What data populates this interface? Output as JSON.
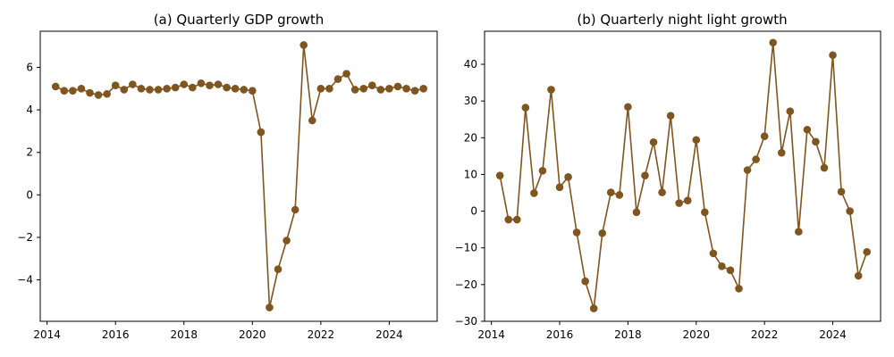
{
  "chart_data": [
    {
      "type": "line",
      "title": "(a) Quarterly GDP growth",
      "xlabel": "",
      "ylabel": "",
      "xlim": [
        2013.8,
        2025.4
      ],
      "ylim": [
        -5.95,
        7.7
      ],
      "xticks": [
        2014,
        2016,
        2018,
        2020,
        2022,
        2024
      ],
      "yticks": [
        -4,
        -2,
        0,
        2,
        4,
        6
      ],
      "grid": false,
      "colors": {
        "series": "#7f5520"
      },
      "series": [
        {
          "x": [
            2014.25,
            2014.5,
            2014.75,
            2015.0,
            2015.25,
            2015.5,
            2015.75,
            2016.0,
            2016.25,
            2016.5,
            2016.75,
            2017.0,
            2017.25,
            2017.5,
            2017.75,
            2018.0,
            2018.25,
            2018.5,
            2018.75,
            2019.0,
            2019.25,
            2019.5,
            2019.75,
            2020.0,
            2020.25,
            2020.5,
            2020.75,
            2021.0,
            2021.25,
            2021.5,
            2021.75,
            2022.0,
            2022.25,
            2022.5,
            2022.75,
            2023.0,
            2023.25,
            2023.5,
            2023.75,
            2024.0,
            2024.25,
            2024.5,
            2024.75,
            2025.0
          ],
          "y": [
            5.1,
            4.9,
            4.9,
            5.0,
            4.8,
            4.7,
            4.75,
            5.15,
            4.95,
            5.2,
            5.0,
            4.95,
            4.95,
            5.0,
            5.05,
            5.2,
            5.05,
            5.25,
            5.15,
            5.2,
            5.05,
            5.0,
            4.95,
            4.9,
            2.95,
            -5.3,
            -3.5,
            -2.15,
            -0.7,
            7.05,
            3.5,
            5.0,
            5.0,
            5.45,
            5.7,
            4.95,
            5.0,
            5.15,
            4.95,
            5.0,
            5.1,
            5.0,
            4.9,
            5.0
          ]
        }
      ]
    },
    {
      "type": "line",
      "title": "(b) Quarterly night light growth",
      "xlabel": "",
      "ylabel": "",
      "xlim": [
        2013.8,
        2025.4
      ],
      "ylim": [
        -30,
        49
      ],
      "xticks": [
        2014,
        2016,
        2018,
        2020,
        2022,
        2024
      ],
      "yticks": [
        -30,
        -20,
        -10,
        0,
        10,
        20,
        30,
        40
      ],
      "grid": false,
      "colors": {
        "series": "#7f5520"
      },
      "series": [
        {
          "x": [
            2014.25,
            2014.5,
            2014.75,
            2015.0,
            2015.25,
            2015.5,
            2015.75,
            2016.0,
            2016.25,
            2016.5,
            2016.75,
            2017.0,
            2017.25,
            2017.5,
            2017.75,
            2018.0,
            2018.25,
            2018.5,
            2018.75,
            2019.0,
            2019.25,
            2019.5,
            2019.75,
            2020.0,
            2020.25,
            2020.5,
            2020.75,
            2021.0,
            2021.25,
            2021.5,
            2021.75,
            2022.0,
            2022.25,
            2022.5,
            2022.75,
            2023.0,
            2023.25,
            2023.5,
            2023.75,
            2024.0,
            2024.25,
            2024.5,
            2024.75,
            2025.0
          ],
          "y": [
            9.7,
            -2.3,
            -2.3,
            28.2,
            4.9,
            11.0,
            33.1,
            6.5,
            9.3,
            -5.8,
            -19.1,
            -26.5,
            -6.0,
            5.1,
            4.4,
            28.4,
            -0.3,
            9.7,
            18.8,
            5.1,
            26.0,
            2.2,
            2.9,
            19.4,
            -0.3,
            -11.5,
            -15.0,
            -16.1,
            -21.1,
            11.2,
            14.1,
            20.4,
            45.9,
            15.9,
            27.2,
            -5.6,
            22.2,
            18.9,
            11.8,
            42.5,
            5.3,
            0.0,
            -17.6,
            -11.1
          ]
        }
      ]
    }
  ]
}
